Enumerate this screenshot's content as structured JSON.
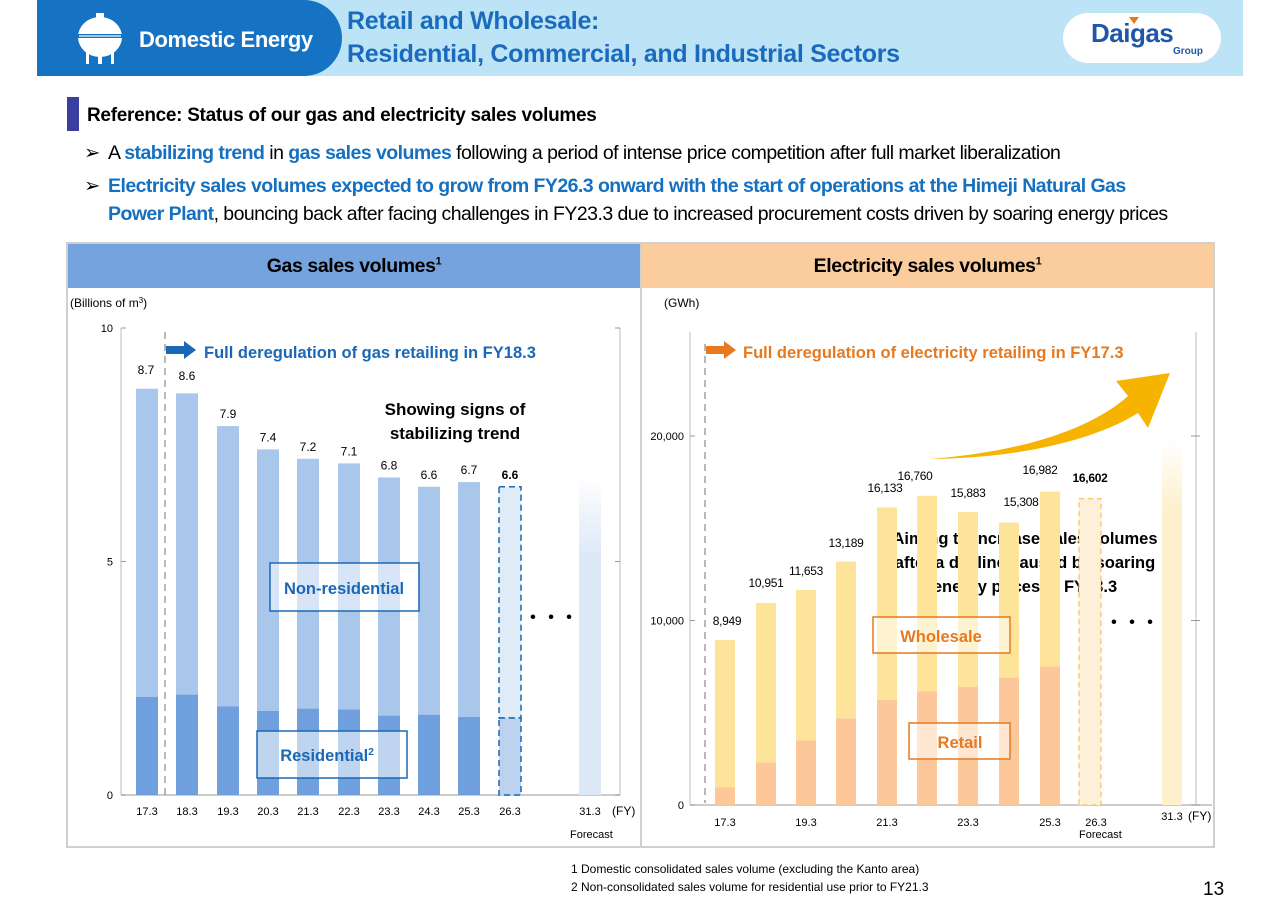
{
  "header": {
    "section": "Domestic Energy",
    "section_icon": "gas-tank-icon",
    "title_line1": "Retail and Wholesale:",
    "title_line2": "Residential, Commercial, and Industrial Sectors",
    "logo_word": "Daigas",
    "logo_sub": "Group"
  },
  "section_title": "Reference: Status of our gas and electricity sales volumes",
  "bullets": [
    {
      "parts": [
        {
          "t": "A ",
          "hl": false
        },
        {
          "t": "stabilizing trend",
          "hl": true
        },
        {
          "t": " in ",
          "hl": false
        },
        {
          "t": "gas sales volumes",
          "hl": true
        },
        {
          "t": " following a period of intense price competition after full market liberalization",
          "hl": false
        }
      ]
    },
    {
      "parts": [
        {
          "t": "Electricity sales volumes expected to grow from FY26.3 onward with the start of operations at the Himeji Natural Gas",
          "hl": true
        }
      ]
    },
    {
      "parts": [
        {
          "t": "Power Plant",
          "hl": true
        },
        {
          "t": ", bouncing back after facing challenges in FY23.3 due to increased procurement costs driven by soaring energy prices",
          "hl": false
        }
      ]
    }
  ],
  "colors": {
    "brand_blue": "#1673c4",
    "highlight_blue": "#1670c0",
    "gas_header": "#74a3dd",
    "elec_header": "#fbcd9e",
    "gas_residential": "#6f9fdc",
    "gas_nonresidential": "#a9c6eb",
    "elec_retail": "#fcc89a",
    "elec_wholesale": "#fde49a",
    "elec_accent": "#e7791e",
    "growth_arrow": "#f6b400"
  },
  "panels": {
    "gas_title": "Gas sales volumes",
    "elec_title": "Electricity sales volumes",
    "footnote_marker": "1"
  },
  "chart_data": [
    {
      "type": "bar",
      "stacked": true,
      "title": "Gas sales volumes",
      "ylabel": "(Billions of m³)",
      "xlabel": "(FY)",
      "ylim": [
        0,
        10
      ],
      "yticks": [
        0,
        5,
        10
      ],
      "categories": [
        "17.3",
        "18.3",
        "19.3",
        "20.3",
        "21.3",
        "22.3",
        "23.3",
        "24.3",
        "25.3",
        "26.3",
        "31.3"
      ],
      "totals": [
        8.7,
        8.6,
        7.9,
        7.4,
        7.2,
        7.1,
        6.8,
        6.6,
        6.7,
        6.6,
        null
      ],
      "total_labels": [
        "8.7",
        "8.6",
        "7.9",
        "7.4",
        "7.2",
        "7.1",
        "6.8",
        "6.6",
        "6.7",
        "6.6",
        ""
      ],
      "series": [
        {
          "name": "Residential",
          "values": [
            2.1,
            2.15,
            1.9,
            1.8,
            1.85,
            1.83,
            1.7,
            1.72,
            1.67,
            1.65,
            null
          ]
        },
        {
          "name": "Non-residential",
          "values": [
            6.6,
            6.45,
            6.0,
            5.6,
            5.35,
            5.27,
            5.1,
            4.88,
            5.03,
            4.95,
            null
          ]
        }
      ],
      "forecast_categories": [
        "26.3"
      ],
      "forecast_label": "Forecast",
      "future_placeholder": "31.3",
      "ellipsis": "• • •",
      "annotations": {
        "dereg": "Full deregulation of gas retailing in FY18.3",
        "trend_line1": "Showing signs of",
        "trend_line2": "stabilizing trend",
        "nonres_label": "Non-residential",
        "res_label": "Residential",
        "res_sup": "2"
      }
    },
    {
      "type": "bar",
      "stacked": true,
      "title": "Electricity sales volumes",
      "ylabel": "(GWh)",
      "xlabel": "(FY)",
      "ylim": [
        0,
        25000
      ],
      "yticks": [
        0,
        10000,
        20000
      ],
      "ytick_labels": [
        "0",
        "10,000",
        "20,000"
      ],
      "categories": [
        "17.3",
        "18.3",
        "19.3",
        "20.3",
        "21.3",
        "22.3",
        "23.3",
        "24.3",
        "25.3",
        "26.3",
        "31.3"
      ],
      "x_tick_labels": [
        "17.3",
        "",
        "19.3",
        "",
        "21.3",
        "",
        "23.3",
        "",
        "25.3",
        "26.3",
        "31.3"
      ],
      "totals": [
        8949,
        10951,
        11653,
        13189,
        16133,
        16760,
        15883,
        15308,
        16982,
        16602,
        null
      ],
      "total_labels": [
        "8,949",
        "10,951",
        "11,653",
        "13,189",
        "16,133",
        "16,760",
        "15,883",
        "15,308",
        "16,982",
        "16,602",
        ""
      ],
      "series": [
        {
          "name": "Retail",
          "values": [
            950,
            2300,
            3500,
            4700,
            5700,
            6150,
            6400,
            6900,
            7500,
            null,
            null
          ]
        },
        {
          "name": "Wholesale",
          "values": [
            7999,
            8651,
            8153,
            8489,
            10433,
            10610,
            9483,
            8408,
            9482,
            null,
            null
          ]
        }
      ],
      "forecast_categories": [
        "26.3"
      ],
      "forecast_label": "Forecast",
      "future_placeholder": "31.3",
      "ellipsis": "• • •",
      "annotations": {
        "dereg": "Full deregulation of electricity retailing in FY17.3",
        "aim_line1": "Aiming to increase sales volumes",
        "aim_line2": "after a decline caused by soaring",
        "aim_line3": "energy prices in FY23.3",
        "wholesale_label": "Wholesale",
        "retail_label": "Retail"
      }
    }
  ],
  "footnotes": [
    "1  Domestic consolidated sales volume (excluding the Kanto area)",
    "2  Non-consolidated sales volume for residential use prior to FY21.3"
  ],
  "page_number": "13"
}
